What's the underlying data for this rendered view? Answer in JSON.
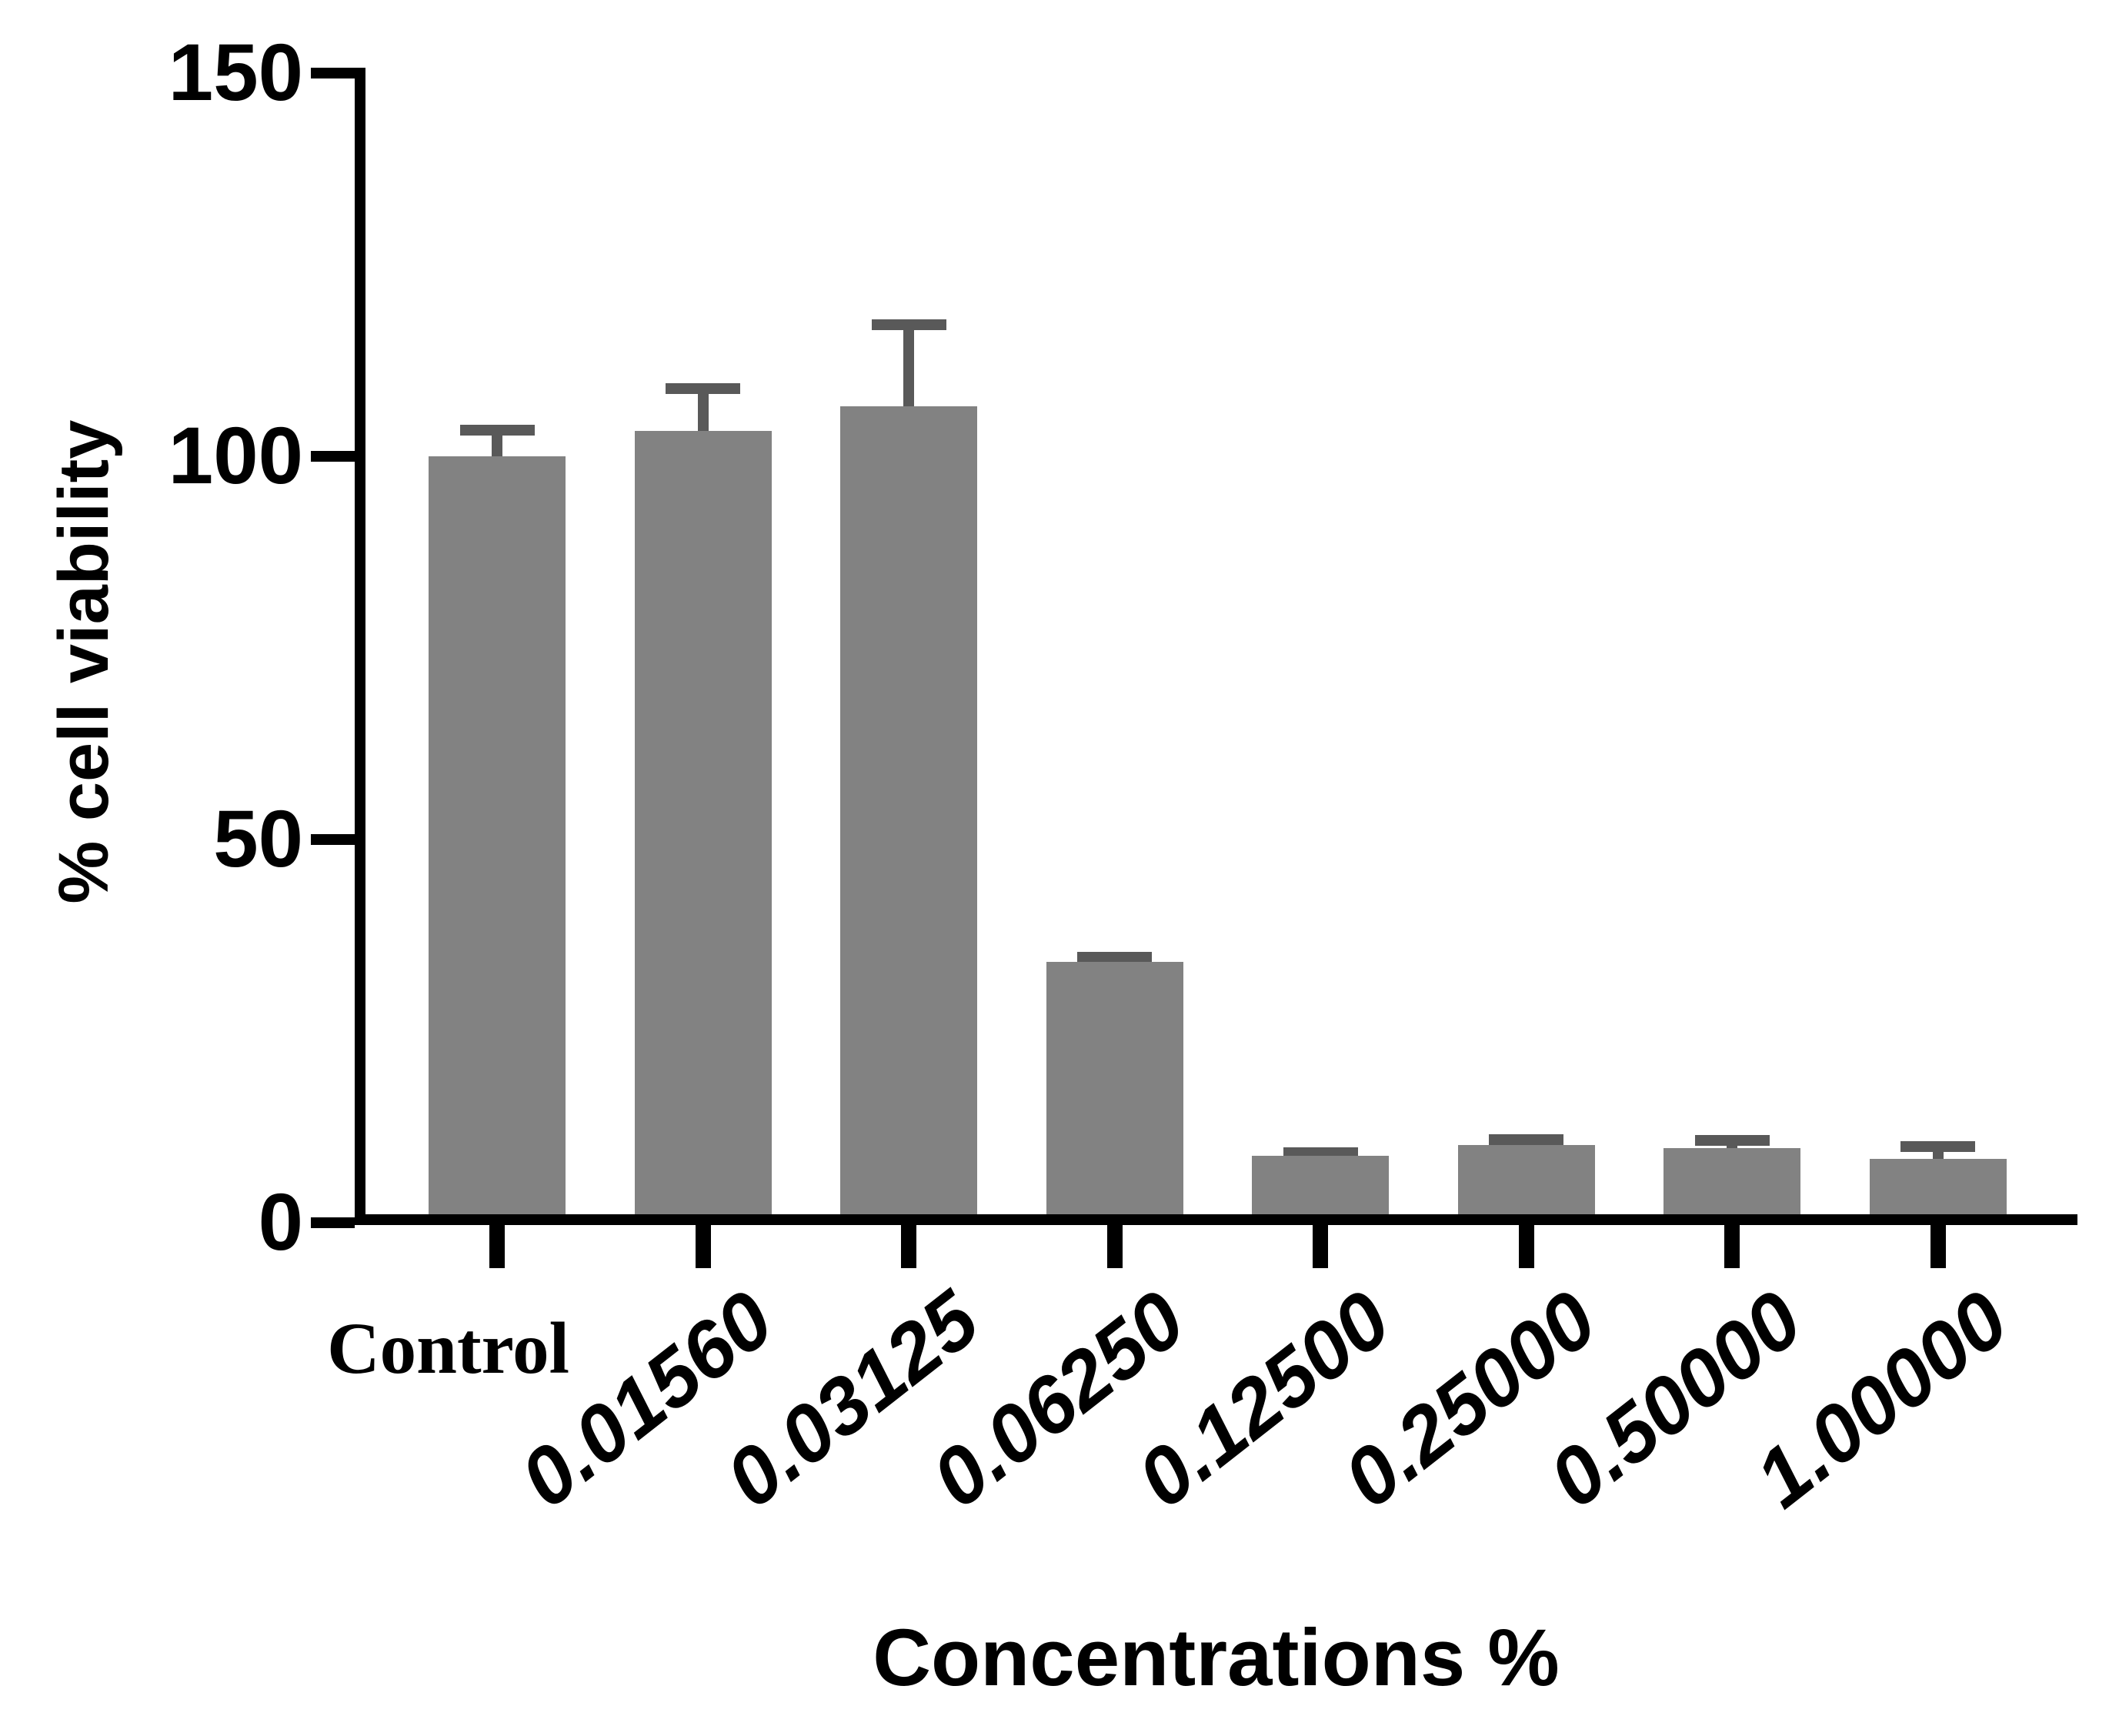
{
  "chart_data": {
    "type": "bar",
    "title": "",
    "xlabel": "Concentrations %",
    "ylabel": "% cell viability",
    "categories": [
      "Control",
      "0.01560",
      "0.03125",
      "0.06250",
      "0.12500",
      "0.25000",
      "0.50000",
      "1.00000"
    ],
    "values": [
      100,
      103.3,
      106.5,
      34,
      8.7,
      10.1,
      9.7,
      8.3
    ],
    "errors_plus": [
      3.4,
      5.5,
      10.7,
      0.6,
      0.4,
      0.7,
      1.0,
      1.6
    ],
    "error_style": "upper-only-with-caps",
    "ylim": [
      0,
      150
    ],
    "yticks": [
      0,
      50,
      100,
      150
    ],
    "grid": false,
    "legend": null,
    "bar_color": "#828282",
    "error_bar_color": "#595959",
    "axis_color": "#000000",
    "text_color": "#000000"
  }
}
